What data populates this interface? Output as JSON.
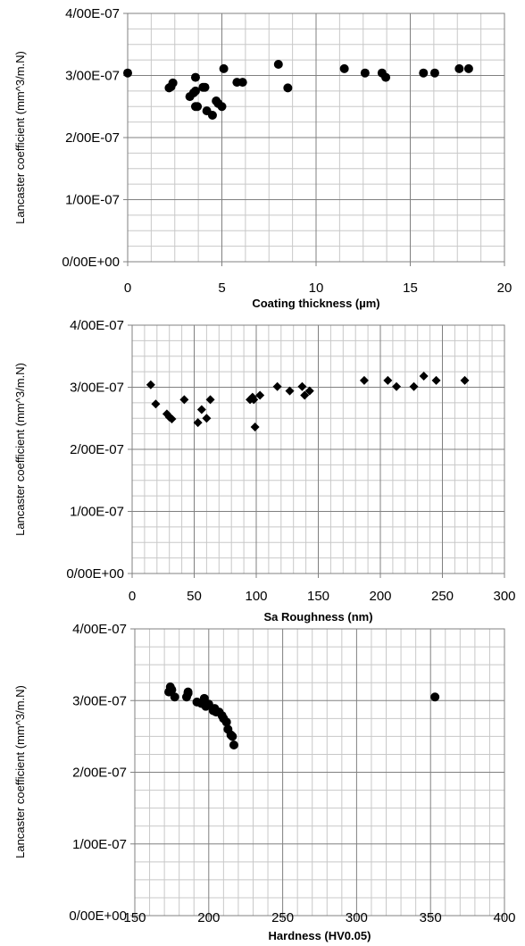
{
  "chart_data": [
    {
      "type": "scatter",
      "marker": "circle",
      "xlabel": "Coating thickness (µm)",
      "ylabel": "Lancaster coefficient (mm^3/m.N)",
      "xlim": [
        0,
        20
      ],
      "ylim": [
        0,
        4e-07
      ],
      "xticks": [
        "0",
        "5",
        "10",
        "15",
        "20"
      ],
      "yticks": [
        "0/00E+00",
        "1/00E-07",
        "2/00E-07",
        "3/00E-07",
        "4/00E-07"
      ],
      "grid": true,
      "x": [
        0.0,
        2.2,
        2.3,
        2.4,
        3.3,
        3.5,
        3.6,
        3.6,
        3.6,
        3.7,
        4.0,
        4.1,
        4.2,
        4.5,
        4.7,
        4.8,
        5.0,
        5.1,
        5.8,
        6.1,
        8.0,
        8.5,
        11.5,
        12.6,
        13.5,
        13.7,
        15.7,
        16.3,
        17.6,
        18.1
      ],
      "y": [
        3.04e-07,
        2.8e-07,
        2.82e-07,
        2.88e-07,
        2.66e-07,
        2.72e-07,
        2.97e-07,
        2.5e-07,
        2.75e-07,
        2.5e-07,
        2.81e-07,
        2.81e-07,
        2.43e-07,
        2.36e-07,
        2.59e-07,
        2.55e-07,
        2.5e-07,
        3.11e-07,
        2.89e-07,
        2.89e-07,
        3.18e-07,
        2.8e-07,
        3.11e-07,
        3.04e-07,
        3.04e-07,
        2.97e-07,
        3.04e-07,
        3.04e-07,
        3.11e-07,
        3.11e-07
      ]
    },
    {
      "type": "scatter",
      "marker": "diamond",
      "xlabel": "Sa Roughness (nm)",
      "ylabel": "Lancaster coefficient (mm^3/m.N)",
      "xlim": [
        0,
        300
      ],
      "ylim": [
        0,
        4e-07
      ],
      "xticks": [
        "0",
        "50",
        "100",
        "150",
        "200",
        "250",
        "300"
      ],
      "yticks": [
        "0/00E+00",
        "1/00E-07",
        "2/00E-07",
        "3/00E-07",
        "4/00E-07"
      ],
      "grid": true,
      "x": [
        15,
        19,
        28,
        30,
        32,
        42,
        53,
        56,
        60,
        63,
        95,
        97,
        98,
        99,
        103,
        117,
        127,
        137,
        139,
        143,
        187,
        206,
        213,
        227,
        235,
        245,
        268
      ],
      "y": [
        3.04e-07,
        2.73e-07,
        2.57e-07,
        2.52e-07,
        2.49e-07,
        2.8e-07,
        2.43e-07,
        2.64e-07,
        2.5e-07,
        2.8e-07,
        2.8e-07,
        2.84e-07,
        2.8e-07,
        2.36e-07,
        2.87e-07,
        3.01e-07,
        2.94e-07,
        3.01e-07,
        2.87e-07,
        2.94e-07,
        3.11e-07,
        3.11e-07,
        3.01e-07,
        3.01e-07,
        3.18e-07,
        3.11e-07,
        3.11e-07
      ]
    },
    {
      "type": "scatter",
      "marker": "circle",
      "xlabel": "Hardness (HV0.05)",
      "ylabel": "Lancaster coefficient (mm^3/m.N)",
      "xlim": [
        150,
        400
      ],
      "ylim": [
        0,
        4e-07
      ],
      "xticks": [
        "150",
        "200",
        "250",
        "300",
        "350",
        "400"
      ],
      "yticks": [
        "0/00E+00",
        "1/00E-07",
        "2/00E-07",
        "3/00E-07",
        "4/00E-07"
      ],
      "grid": true,
      "x": [
        173,
        174,
        175,
        177,
        185,
        186,
        186,
        192,
        195,
        197,
        198,
        200,
        203,
        204,
        205,
        207,
        209,
        210,
        212,
        213,
        215,
        216,
        217,
        353
      ],
      "y": [
        3.12e-07,
        3.19e-07,
        3.15e-07,
        3.05e-07,
        3.05e-07,
        3.12e-07,
        3.1e-07,
        2.98e-07,
        2.96e-07,
        3.03e-07,
        2.92e-07,
        2.95e-07,
        2.86e-07,
        2.89e-07,
        2.84e-07,
        2.84e-07,
        2.79e-07,
        2.75e-07,
        2.7e-07,
        2.6e-07,
        2.52e-07,
        2.5e-07,
        2.38e-07,
        3.05e-07
      ]
    }
  ]
}
